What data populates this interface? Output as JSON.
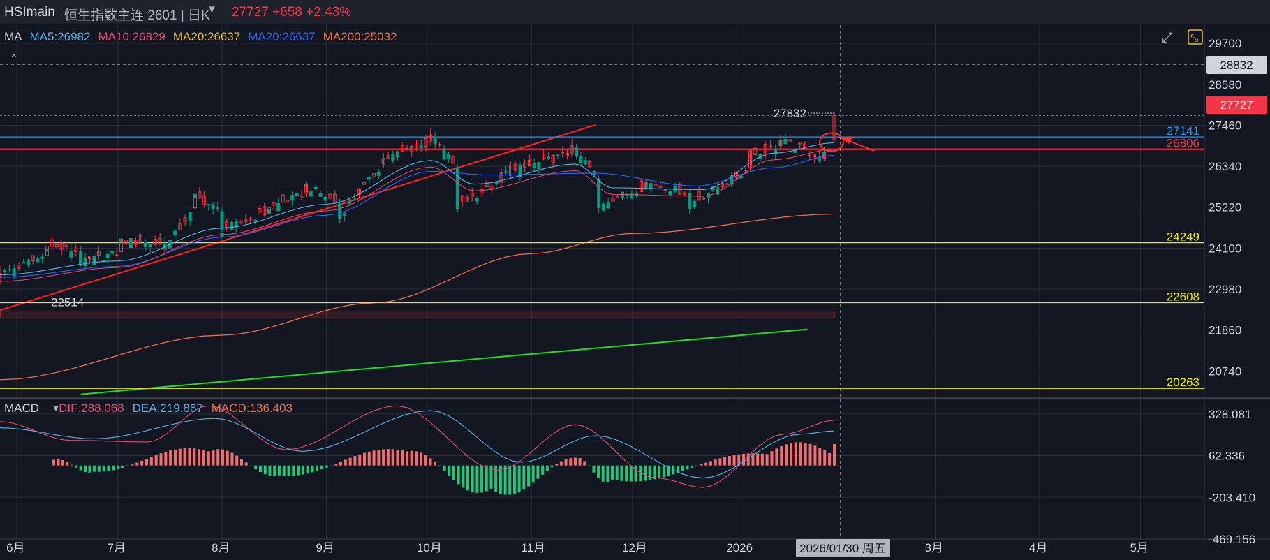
{
  "header": {
    "symbol": "HSImain",
    "name": "恒生指数主连 2601 | 日K",
    "change": "27727 +658 +2.43%",
    "change_color": "#f23645"
  },
  "legend_main": [
    {
      "text": "MA",
      "color": "#d1d4dc"
    },
    {
      "text": "MA5:26982",
      "color": "#5ab0e8"
    },
    {
      "text": "MA10:26829",
      "color": "#e34b6f"
    },
    {
      "text": "MA20:26637",
      "color": "#e8b73c"
    },
    {
      "text": "MA20:26637",
      "color": "#2962ff"
    },
    {
      "text": "MA200:25032",
      "color": "#ef6c4a"
    }
  ],
  "legend_macd": [
    {
      "text": "MACD",
      "color": "#d1d4dc"
    },
    {
      "text": "DIF:288.068",
      "color": "#e34b6f"
    },
    {
      "text": "DEA:219.867",
      "color": "#5ab0e8"
    },
    {
      "text": "MACD:136.403",
      "color": "#ef6c4a"
    }
  ],
  "price_axis": [
    "29700",
    "28580",
    "27460",
    "26340",
    "25220",
    "24100",
    "22980",
    "21860",
    "20740"
  ],
  "macd_axis": [
    "328.081",
    "62.336",
    "-203.410",
    "-469.156"
  ],
  "time_axis": [
    "6月",
    "7月",
    "8月",
    "9月",
    "10月",
    "11月",
    "12月",
    "2026",
    "3月",
    "4月",
    "5月"
  ],
  "cursor": {
    "date": "2026/01/30 周五",
    "price": "28832"
  },
  "current_price": "27727",
  "level_labels": [
    {
      "text": "27141",
      "color": "#2196f3"
    },
    {
      "text": "26806",
      "color": "#f23645"
    },
    {
      "text": "24249",
      "color": "#e8e800"
    },
    {
      "text": "22608",
      "color": "#e8e800"
    },
    {
      "text": "20263",
      "color": "#e8e800"
    }
  ],
  "annotations": {
    "high": "27832",
    "low": "22514"
  },
  "colors": {
    "up": "#f23645",
    "down": "#089981",
    "grid": "#2a2e39",
    "background": "#131722"
  },
  "chart_data": [
    {
      "type": "candlestick",
      "title": "HSImain 恒生指数主连 2601 日K",
      "ylim": [
        20000,
        30200
      ],
      "x_range": [
        "2025-05-27",
        "2026-05-20"
      ],
      "series": [
        {
          "name": "MA200",
          "values": [
            {
              "x": "2025-05-27",
              "y": 20500
            },
            {
              "x": "2025-08-01",
              "y": 21720
            },
            {
              "x": "2025-09-15",
              "y": 22600
            },
            {
              "x": "2025-11-01",
              "y": 23950
            },
            {
              "x": "2025-12-01",
              "y": 24500
            },
            {
              "x": "2026-01-30",
              "y": 25032
            }
          ]
        },
        {
          "name": "MA5",
          "values": [
            {
              "x": "2025-05-27",
              "y": 23370
            },
            {
              "x": "2025-07-01",
              "y": 23750
            },
            {
              "x": "2025-08-01",
              "y": 24650
            },
            {
              "x": "2025-09-01",
              "y": 25300
            },
            {
              "x": "2025-10-02",
              "y": 26500
            },
            {
              "x": "2025-10-15",
              "y": 25850
            },
            {
              "x": "2025-11-14",
              "y": 26400
            },
            {
              "x": "2025-11-25",
              "y": 25750
            },
            {
              "x": "2025-12-22",
              "y": 25700
            },
            {
              "x": "2026-01-12",
              "y": 26700
            },
            {
              "x": "2026-01-30",
              "y": 26982
            }
          ]
        },
        {
          "name": "MA20",
          "values": [
            {
              "x": "2025-05-27",
              "y": 23300
            },
            {
              "x": "2025-07-01",
              "y": 23600
            },
            {
              "x": "2025-08-01",
              "y": 24400
            },
            {
              "x": "2025-09-01",
              "y": 25000
            },
            {
              "x": "2025-10-02",
              "y": 26200
            },
            {
              "x": "2025-10-20",
              "y": 26100
            },
            {
              "x": "2025-11-20",
              "y": 26150
            },
            {
              "x": "2025-12-20",
              "y": 25800
            },
            {
              "x": "2026-01-12",
              "y": 26300
            },
            {
              "x": "2026-01-30",
              "y": 26637
            }
          ]
        },
        {
          "name": "Candles (approx.)",
          "values": [
            {
              "x": "2025-05-27",
              "o": 23300,
              "h": 23600,
              "l": 23100,
              "c": 23400
            },
            {
              "x": "2025-06-10",
              "o": 23900,
              "h": 24300,
              "l": 23850,
              "c": 24150
            },
            {
              "x": "2025-06-20",
              "o": 24000,
              "h": 24150,
              "l": 23600,
              "c": 23700
            },
            {
              "x": "2025-07-02",
              "o": 24000,
              "h": 24400,
              "l": 23950,
              "c": 24300
            },
            {
              "x": "2025-07-15",
              "o": 24200,
              "h": 24400,
              "l": 24000,
              "c": 24100
            },
            {
              "x": "2025-07-24",
              "o": 25200,
              "h": 25700,
              "l": 25100,
              "c": 25500
            },
            {
              "x": "2025-08-01",
              "o": 25100,
              "h": 25200,
              "l": 24500,
              "c": 24600
            },
            {
              "x": "2025-08-15",
              "o": 25100,
              "h": 25300,
              "l": 24900,
              "c": 25200
            },
            {
              "x": "2025-08-26",
              "o": 25600,
              "h": 25900,
              "l": 25500,
              "c": 25800
            },
            {
              "x": "2025-09-05",
              "o": 25300,
              "h": 25450,
              "l": 24800,
              "c": 25000
            },
            {
              "x": "2025-09-18",
              "o": 26400,
              "h": 26700,
              "l": 26300,
              "c": 26550
            },
            {
              "x": "2025-10-02",
              "o": 27000,
              "h": 27400,
              "l": 26900,
              "c": 27200
            },
            {
              "x": "2025-10-10",
              "o": 26300,
              "h": 26400,
              "l": 25100,
              "c": 25300
            },
            {
              "x": "2025-10-23",
              "o": 25900,
              "h": 26300,
              "l": 25800,
              "c": 26100
            },
            {
              "x": "2025-11-13",
              "o": 26700,
              "h": 27100,
              "l": 26600,
              "c": 26900
            },
            {
              "x": "2025-11-21",
              "o": 26000,
              "h": 26100,
              "l": 25200,
              "c": 25300
            },
            {
              "x": "2025-12-05",
              "o": 25800,
              "h": 26000,
              "l": 25700,
              "c": 25900
            },
            {
              "x": "2025-12-18",
              "o": 25600,
              "h": 25700,
              "l": 25200,
              "c": 25300
            },
            {
              "x": "2026-01-05",
              "o": 26300,
              "h": 26700,
              "l": 26200,
              "c": 26600
            },
            {
              "x": "2026-01-14",
              "o": 26900,
              "h": 27200,
              "l": 26800,
              "c": 27050
            },
            {
              "x": "2026-01-27",
              "o": 26550,
              "h": 26700,
              "l": 26500,
              "c": 26650
            },
            {
              "x": "2026-01-30",
              "o": 27069,
              "h": 27832,
              "l": 27000,
              "c": 27727
            }
          ]
        }
      ],
      "levels": [
        {
          "y": 27141,
          "color": "#2196f3"
        },
        {
          "y": 26806,
          "color": "#f23645"
        },
        {
          "y": 24249,
          "color": "#e8e800"
        },
        {
          "y": 22608,
          "color": "#e8e800"
        },
        {
          "y": 20263,
          "color": "#e8e800"
        }
      ],
      "trendlines": [
        {
          "color": "#ff2020",
          "from": {
            "x": "2025-05-27",
            "y": 22400
          },
          "to": {
            "x": "2025-11-20",
            "y": 27470
          }
        },
        {
          "color": "#22dd22",
          "from": {
            "x": "2025-06-20",
            "y": 20100
          },
          "to": {
            "x": "2026-01-22",
            "y": 21880
          }
        }
      ],
      "zone": {
        "y_top": 22380,
        "y_bottom": 22190
      },
      "grid": true
    },
    {
      "type": "bar",
      "title": "MACD",
      "ylim": [
        -469.156,
        430
      ],
      "series": [
        {
          "name": "DIF",
          "values": [
            {
              "x": "2025-05-27",
              "y": 280
            },
            {
              "x": "2025-06-17",
              "y": 160
            },
            {
              "x": "2025-07-10",
              "y": 150
            },
            {
              "x": "2025-07-28",
              "y": 380
            },
            {
              "x": "2025-08-20",
              "y": 100
            },
            {
              "x": "2025-09-22",
              "y": 380
            },
            {
              "x": "2025-10-22",
              "y": -30
            },
            {
              "x": "2025-11-14",
              "y": 260
            },
            {
              "x": "2025-12-08",
              "y": -80
            },
            {
              "x": "2025-12-22",
              "y": -140
            },
            {
              "x": "2026-01-15",
              "y": 200
            },
            {
              "x": "2026-01-30",
              "y": 288.068
            }
          ]
        },
        {
          "name": "DEA",
          "values": [
            {
              "x": "2025-05-27",
              "y": 240
            },
            {
              "x": "2025-06-24",
              "y": 170
            },
            {
              "x": "2025-07-30",
              "y": 300
            },
            {
              "x": "2025-08-25",
              "y": 90
            },
            {
              "x": "2025-10-02",
              "y": 350
            },
            {
              "x": "2025-10-29",
              "y": 20
            },
            {
              "x": "2025-11-20",
              "y": 190
            },
            {
              "x": "2025-12-22",
              "y": -80
            },
            {
              "x": "2026-01-20",
              "y": 200
            },
            {
              "x": "2026-01-30",
              "y": 219.867
            }
          ]
        },
        {
          "name": "MACD",
          "values": [
            {
              "x": "2025-06-12",
              "y": 80
            },
            {
              "x": "2025-06-24",
              "y": -90
            },
            {
              "x": "2025-07-28",
              "y": 200
            },
            {
              "x": "2025-08-18",
              "y": -140
            },
            {
              "x": "2025-09-25",
              "y": 200
            },
            {
              "x": "2025-10-20",
              "y": -330
            },
            {
              "x": "2025-11-14",
              "y": 110
            },
            {
              "x": "2025-11-25",
              "y": -200
            },
            {
              "x": "2026-01-10",
              "y": 160
            },
            {
              "x": "2026-01-30",
              "y": 136.403
            }
          ]
        }
      ],
      "grid": true
    }
  ]
}
